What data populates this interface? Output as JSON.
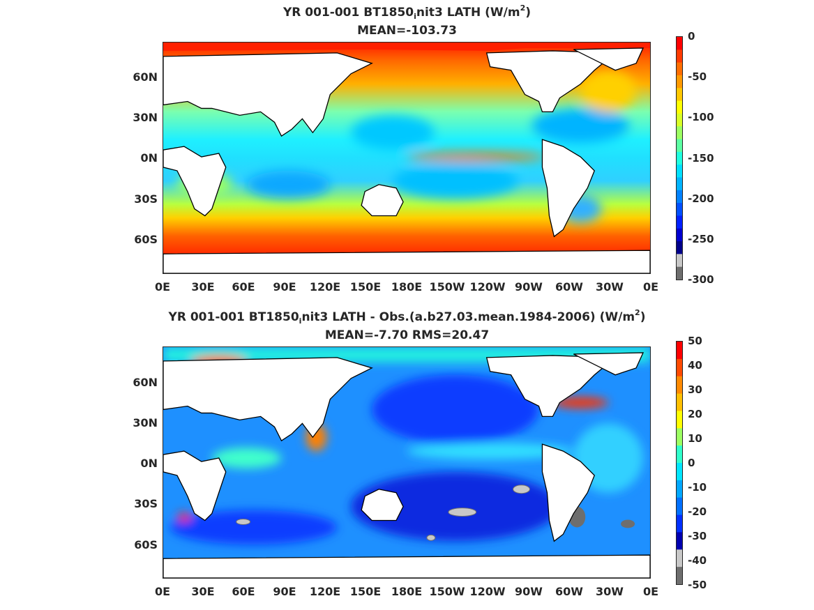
{
  "panel1": {
    "title_parts": [
      "YR 001-001 BT1850",
      "i",
      "nit3  LATH (W/m",
      "2",
      ")"
    ],
    "mean_line": "MEAN=-103.73",
    "y_ticks": [
      "60N",
      "30N",
      "0N",
      "30S",
      "60S"
    ],
    "x_ticks": [
      "0E",
      "30E",
      "60E",
      "90E",
      "120E",
      "150E",
      "180E",
      "150W",
      "120W",
      "90W",
      "60W",
      "30W",
      "0E"
    ],
    "colorbar": {
      "labels": [
        "0",
        "-50",
        "-100",
        "-150",
        "-200",
        "-250",
        "-300"
      ],
      "colors": [
        "#ff0000",
        "#ff3b00",
        "#ff6e00",
        "#ff9a00",
        "#ffc800",
        "#ffff00",
        "#d9ff26",
        "#9cff62",
        "#5cffa3",
        "#1fffe0",
        "#00e0ff",
        "#00b4ff",
        "#0082ff",
        "#0050ff",
        "#0020ff",
        "#0000d0",
        "#00008a",
        "#c8c8c8",
        "#6e6e6e"
      ]
    }
  },
  "panel2": {
    "title_parts": [
      "YR 001-001 BT1850",
      "i",
      "nit3 LATH - Obs.(a.b27.03.mean.1984-2006) (W/m",
      "2",
      ")"
    ],
    "mean_line": "MEAN=-7.70 RMS=20.47",
    "y_ticks": [
      "60N",
      "30N",
      "0N",
      "30S",
      "60S"
    ],
    "x_ticks": [
      "0E",
      "30E",
      "60E",
      "90E",
      "120E",
      "150E",
      "180E",
      "150W",
      "120W",
      "90W",
      "60W",
      "30W",
      "0E"
    ],
    "colorbar": {
      "labels": [
        "50",
        "40",
        "30",
        "20",
        "10",
        "0",
        "-10",
        "-20",
        "-30",
        "-40",
        "-50"
      ],
      "colors": [
        "#ff0000",
        "#ff4a00",
        "#ff8a00",
        "#ffc000",
        "#ffff00",
        "#9cff62",
        "#30ffcc",
        "#00e6ff",
        "#00a8ff",
        "#0070ff",
        "#0030ff",
        "#0000b0",
        "#c8c8c8",
        "#6e6e6e"
      ]
    }
  },
  "chart_data": [
    {
      "type": "heatmap",
      "title": "YR 001-001 BT1850_init3  LATH (W/m^2)",
      "subtitle": "MEAN=-103.73",
      "x_ticks": [
        "0E",
        "30E",
        "60E",
        "90E",
        "120E",
        "150E",
        "180E",
        "150W",
        "120W",
        "90W",
        "60W",
        "30W",
        "0E"
      ],
      "y_ticks": [
        "60N",
        "30N",
        "0N",
        "30S",
        "60S"
      ],
      "xlim": [
        0,
        360
      ],
      "ylim": [
        -90,
        90
      ],
      "colorbar_range": [
        -300,
        0
      ],
      "colorbar_ticks": [
        0,
        -50,
        -100,
        -150,
        -200,
        -250,
        -300
      ],
      "mean": -103.73
    },
    {
      "type": "heatmap",
      "title": "YR 001-001 BT1850_init3 LATH - Obs.(a.b27.03.mean.1984-2006) (W/m^2)",
      "subtitle": "MEAN=-7.70 RMS=20.47",
      "x_ticks": [
        "0E",
        "30E",
        "60E",
        "90E",
        "120E",
        "150E",
        "180E",
        "150W",
        "120W",
        "90W",
        "60W",
        "30W",
        "0E"
      ],
      "y_ticks": [
        "60N",
        "30N",
        "0N",
        "30S",
        "60S"
      ],
      "xlim": [
        0,
        360
      ],
      "ylim": [
        -90,
        90
      ],
      "colorbar_range": [
        -50,
        50
      ],
      "colorbar_ticks": [
        50,
        40,
        30,
        20,
        10,
        0,
        -10,
        -20,
        -30,
        -40,
        -50
      ],
      "mean": -7.7,
      "rms": 20.47
    }
  ]
}
